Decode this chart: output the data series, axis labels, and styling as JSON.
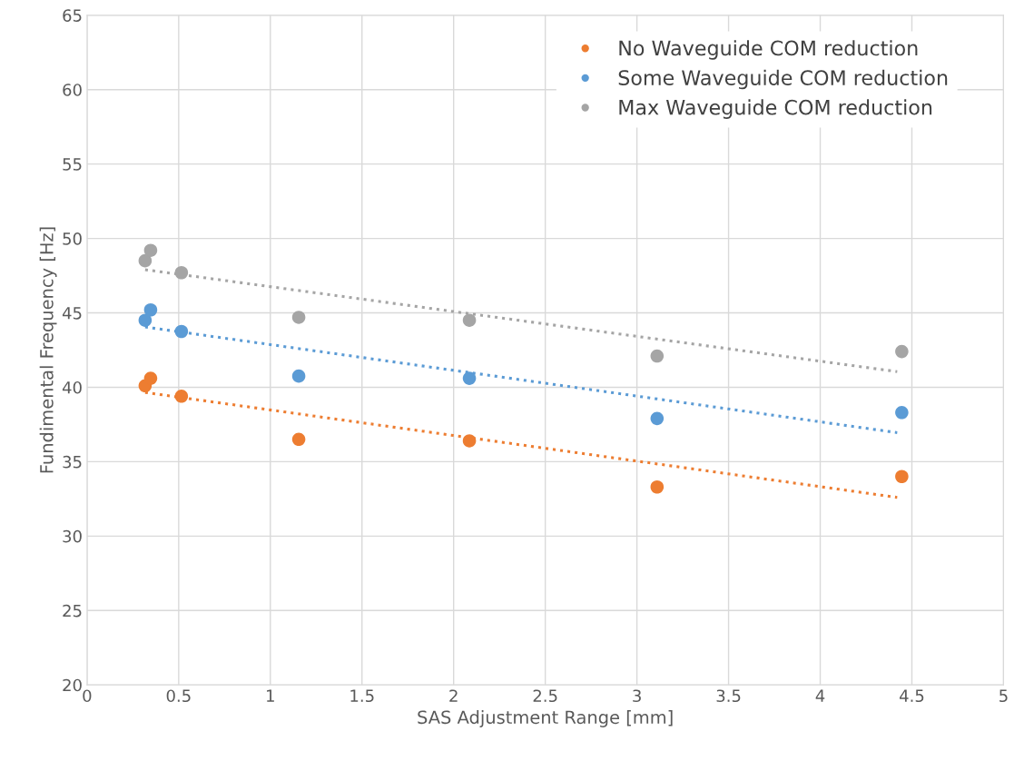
{
  "chart_data": {
    "type": "scatter",
    "xlabel": "SAS Adjustment Range [mm]",
    "ylabel": "Fundimental Frequency [Hz]",
    "xlim": [
      0,
      5
    ],
    "xticks": [
      0,
      0.5,
      1,
      1.5,
      2,
      2.5,
      3,
      3.5,
      4,
      4.5,
      5
    ],
    "ylim": [
      20,
      65
    ],
    "yticks": [
      20,
      25,
      30,
      35,
      40,
      45,
      50,
      55,
      60,
      65
    ],
    "grid": true,
    "legend": "top right",
    "marker": "circle",
    "series": [
      {
        "name": "No Waveguide COM reduction",
        "color": "#ed7d31",
        "x": [
          0.317,
          0.347,
          0.515,
          1.155,
          2.086,
          3.11,
          4.445
        ],
        "values": [
          40.1,
          40.6,
          39.4,
          36.5,
          36.4,
          33.3,
          34.0
        ]
      },
      {
        "name": "Some Waveguide COM reduction",
        "color": "#5b9bd5",
        "x": [
          0.317,
          0.347,
          0.515,
          1.155,
          2.086,
          3.11,
          4.445
        ],
        "values": [
          44.5,
          45.2,
          43.75,
          40.75,
          40.6,
          37.9,
          38.3
        ]
      },
      {
        "name": "Max Waveguide COM reduction",
        "color": "#a5a5a5",
        "x": [
          0.317,
          0.347,
          0.515,
          1.155,
          2.086,
          3.11,
          4.445
        ],
        "values": [
          48.5,
          49.2,
          47.7,
          44.7,
          44.5,
          42.1,
          42.4
        ]
      },
      {
        "type": "line",
        "marker": "none",
        "line_style": "dotted",
        "color": "#ed7d31",
        "x": [
          0.317,
          4.42
        ],
        "values": [
          39.65,
          32.6
        ]
      },
      {
        "type": "line",
        "marker": "none",
        "line_style": "dotted",
        "color": "#5b9bd5",
        "x": [
          0.317,
          4.42
        ],
        "values": [
          44.05,
          36.95
        ]
      },
      {
        "type": "line",
        "marker": "none",
        "line_style": "dotted",
        "color": "#a5a5a5",
        "x": [
          0.317,
          4.42
        ],
        "values": [
          47.9,
          41.05
        ]
      }
    ]
  }
}
